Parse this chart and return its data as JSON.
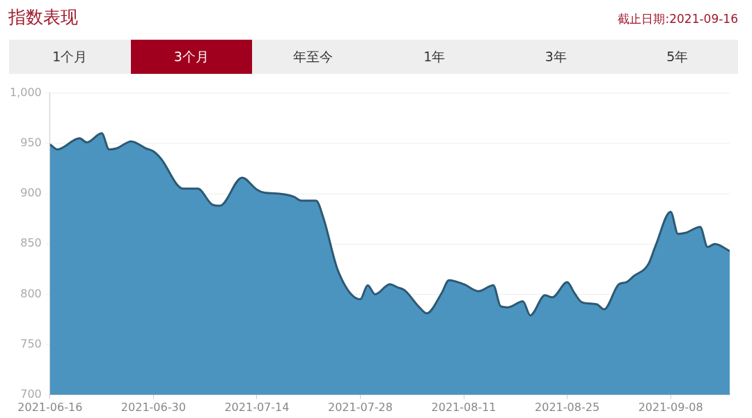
{
  "chart_data": {
    "type": "area",
    "title": "指数表现",
    "subtitle": "截止日期:2021-09-16",
    "annotations": [
      "1个月",
      "3个月",
      "年至今",
      "1年",
      "3年",
      "5年"
    ],
    "x": [
      "2021-06-16",
      "2021-06-17",
      "2021-06-20",
      "2021-06-21",
      "2021-06-23",
      "2021-06-24",
      "2021-06-25",
      "2021-06-27",
      "2021-06-29",
      "2021-06-30",
      "2021-07-01",
      "2021-07-04",
      "2021-07-06",
      "2021-07-08",
      "2021-07-09",
      "2021-07-12",
      "2021-07-14",
      "2021-07-15",
      "2021-07-17",
      "2021-07-19",
      "2021-07-20",
      "2021-07-22",
      "2021-07-23",
      "2021-07-25",
      "2021-07-28",
      "2021-07-29",
      "2021-07-30",
      "2021-08-01",
      "2021-08-02",
      "2021-08-03",
      "2021-08-05",
      "2021-08-06",
      "2021-08-08",
      "2021-08-09",
      "2021-08-11",
      "2021-08-13",
      "2021-08-15",
      "2021-08-16",
      "2021-08-17",
      "2021-08-19",
      "2021-08-20",
      "2021-08-22",
      "2021-08-23",
      "2021-08-25",
      "2021-08-26",
      "2021-08-27",
      "2021-08-29",
      "2021-08-30",
      "2021-09-01",
      "2021-09-02",
      "2021-09-03",
      "2021-09-05",
      "2021-09-06",
      "2021-09-08",
      "2021-09-09",
      "2021-09-10",
      "2021-09-12",
      "2021-09-13",
      "2021-09-14",
      "2021-09-16"
    ],
    "series": [
      {
        "color": "#4b94c0",
        "values": [
          949,
          944,
          955,
          951,
          960,
          944,
          945,
          952,
          945,
          942,
          935,
          905,
          905,
          889,
          888,
          916,
          904,
          901,
          900,
          897,
          893,
          893,
          876,
          823,
          795,
          809,
          800,
          810,
          807,
          804,
          787,
          781,
          801,
          814,
          810,
          803,
          809,
          788,
          787,
          793,
          779,
          799,
          797,
          812,
          801,
          792,
          790,
          785,
          810,
          812,
          818,
          830,
          849,
          882,
          860,
          861,
          867,
          847,
          850,
          843
        ]
      }
    ],
    "xlim": [
      "2021-06-16",
      "2021-09-16"
    ],
    "xticks": [
      "2021-06-16",
      "2021-06-30",
      "2021-07-14",
      "2021-07-28",
      "2021-08-11",
      "2021-08-25",
      "2021-09-08"
    ],
    "ylim": [
      700,
      1000
    ],
    "yticks": [
      700,
      750,
      800,
      850,
      900,
      950,
      {
        "value": 1000,
        "label": "1,000"
      }
    ],
    "grid": "y",
    "legend": false,
    "marker": "none",
    "line_style": "solid"
  }
}
